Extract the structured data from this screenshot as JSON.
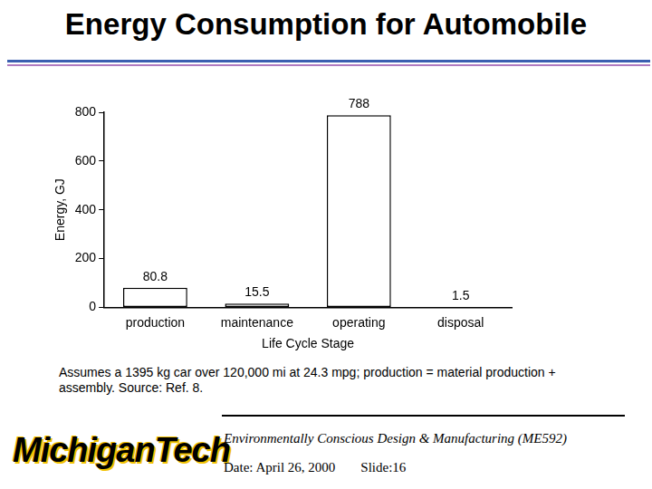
{
  "chart_data": {
    "type": "bar",
    "title": "Energy Consumption for Automobile",
    "categories": [
      "production",
      "maintenance",
      "operating",
      "disposal"
    ],
    "values": [
      80.8,
      15.5,
      788,
      1.5
    ],
    "color": "#ffffff",
    "x_label": "Life Cycle Stage",
    "y_label": "Energy, GJ",
    "ylim": [
      0,
      800
    ],
    "yticks": [
      0,
      200,
      400,
      600,
      800
    ],
    "grid": false,
    "data_labels": true
  },
  "slide": {
    "footnote": "Assumes a 1395 kg car over 120,000 mi at 24.3 mpg; production = material production + assembly. Source: Ref. 8.",
    "course": "Environmentally Conscious Design & Manufacturing (ME592)",
    "date": "Date: April 26, 2000",
    "slide_number": "Slide:16",
    "logo": [
      "Michigan",
      "Tech"
    ]
  }
}
